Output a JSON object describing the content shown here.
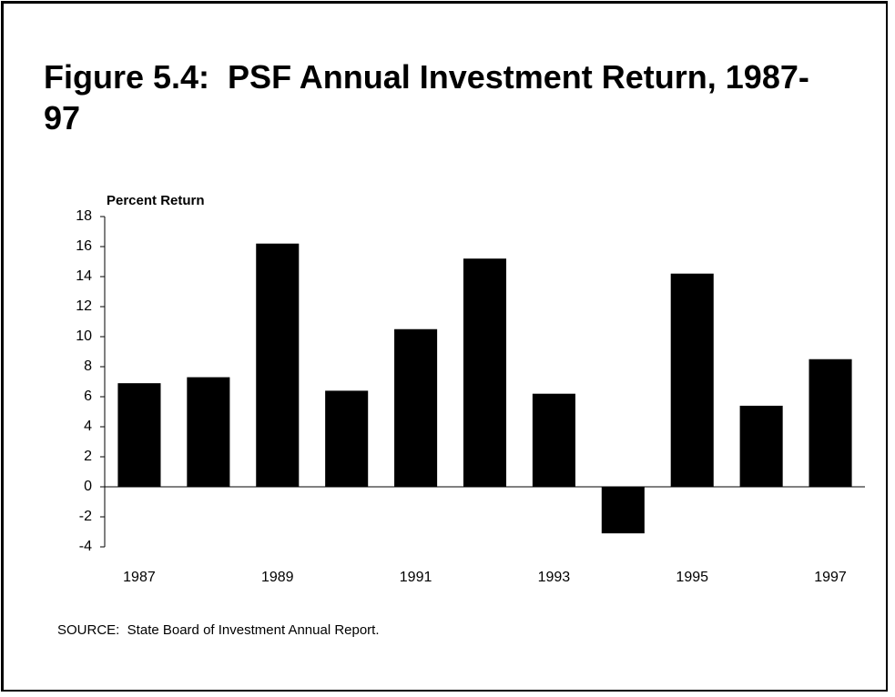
{
  "chart_data": {
    "type": "bar",
    "title": "Figure 5.4:  PSF Annual Investment Return, 1987-97",
    "y_label": "Percent Return",
    "source": "SOURCE:  State Board of Investment Annual Report.",
    "categories": [
      "1987",
      null,
      "1989",
      null,
      "1991",
      null,
      "1993",
      null,
      "1995",
      null,
      "1997"
    ],
    "values": [
      6.9,
      7.3,
      16.2,
      6.4,
      10.5,
      15.2,
      6.2,
      -3.1,
      14.2,
      5.4,
      8.5
    ],
    "color": "#000000",
    "ylim": [
      -4,
      18
    ],
    "yticks": [
      -4,
      -2,
      0,
      2,
      4,
      6,
      8,
      10,
      12,
      14,
      16,
      18
    ],
    "grid": false
  }
}
